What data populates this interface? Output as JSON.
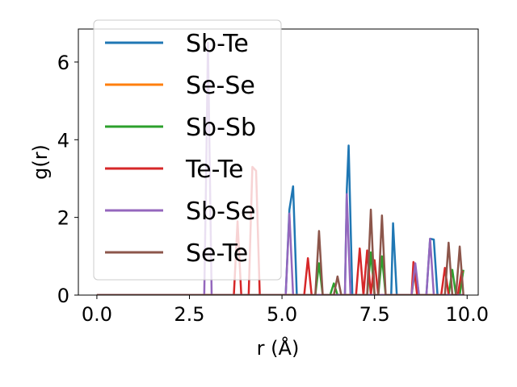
{
  "chart_data": {
    "type": "line",
    "xlabel": "r (Å)",
    "ylabel": "g(r)",
    "xlim": [
      -0.5,
      10.3
    ],
    "ylim": [
      0,
      6.85
    ],
    "xticks": [
      0.0,
      2.5,
      5.0,
      7.5,
      10.0
    ],
    "xtick_labels": [
      "0.0",
      "2.5",
      "5.0",
      "7.5",
      "10.0"
    ],
    "yticks": [
      0,
      2,
      4,
      6
    ],
    "ytick_labels": [
      "0",
      "2",
      "4",
      "6"
    ],
    "grid": false,
    "legend_position": "top-left",
    "series": [
      {
        "name": "Sb-Te",
        "color": "#1f77b4",
        "points": [
          [
            0,
            0
          ],
          [
            5.1,
            0
          ],
          [
            5.2,
            2.2
          ],
          [
            5.3,
            2.8
          ],
          [
            5.4,
            0
          ],
          [
            6.7,
            0
          ],
          [
            6.75,
            2.7
          ],
          [
            6.8,
            3.85
          ],
          [
            6.9,
            0
          ],
          [
            7.95,
            0
          ],
          [
            8.0,
            1.85
          ],
          [
            8.1,
            0
          ],
          [
            8.9,
            0
          ],
          [
            9.0,
            1.45
          ],
          [
            9.1,
            1.43
          ],
          [
            9.2,
            0
          ],
          [
            9.9,
            0
          ]
        ]
      },
      {
        "name": "Se-Se",
        "color": "#ff7f0e",
        "points": [
          [
            0,
            0
          ],
          [
            9.9,
            0
          ]
        ]
      },
      {
        "name": "Sb-Sb",
        "color": "#2ca02c",
        "points": [
          [
            0,
            0
          ],
          [
            5.9,
            0
          ],
          [
            6.0,
            0.82
          ],
          [
            6.1,
            0
          ],
          [
            6.3,
            0
          ],
          [
            6.4,
            0.3
          ],
          [
            6.5,
            0
          ],
          [
            7.3,
            0
          ],
          [
            7.4,
            1.1
          ],
          [
            7.5,
            0
          ],
          [
            7.6,
            0
          ],
          [
            7.7,
            1.0
          ],
          [
            7.8,
            0
          ],
          [
            8.5,
            0
          ],
          [
            8.6,
            0.7
          ],
          [
            8.7,
            0
          ],
          [
            9.5,
            0
          ],
          [
            9.6,
            0.65
          ],
          [
            9.7,
            0
          ],
          [
            9.8,
            0
          ],
          [
            9.9,
            0.65
          ]
        ]
      },
      {
        "name": "Te-Te",
        "color": "#d62728",
        "points": [
          [
            0,
            0
          ],
          [
            3.7,
            0
          ],
          [
            3.8,
            1.9
          ],
          [
            3.9,
            0
          ],
          [
            4.1,
            0
          ],
          [
            4.2,
            3.3
          ],
          [
            4.3,
            3.2
          ],
          [
            4.4,
            0
          ],
          [
            5.6,
            0
          ],
          [
            5.7,
            0.95
          ],
          [
            5.8,
            0
          ],
          [
            7.0,
            0
          ],
          [
            7.1,
            1.2
          ],
          [
            7.2,
            0
          ],
          [
            7.3,
            1.15
          ],
          [
            7.4,
            0
          ],
          [
            7.5,
            0.9
          ],
          [
            7.6,
            0
          ],
          [
            8.5,
            0
          ],
          [
            8.55,
            0.85
          ],
          [
            8.65,
            0
          ],
          [
            9.3,
            0
          ],
          [
            9.4,
            0.7
          ],
          [
            9.5,
            0
          ],
          [
            9.75,
            0
          ],
          [
            9.85,
            0.6
          ],
          [
            9.9,
            0.6
          ]
        ]
      },
      {
        "name": "Sb-Se",
        "color": "#9467bd",
        "points": [
          [
            0,
            0
          ],
          [
            2.9,
            0
          ],
          [
            2.95,
            3.0
          ],
          [
            3.0,
            6.5
          ],
          [
            3.1,
            0
          ],
          [
            5.1,
            0
          ],
          [
            5.2,
            2.1
          ],
          [
            5.3,
            0
          ],
          [
            6.7,
            0
          ],
          [
            6.75,
            2.6
          ],
          [
            6.85,
            0
          ],
          [
            8.5,
            0
          ],
          [
            8.6,
            0.82
          ],
          [
            8.7,
            0
          ],
          [
            8.9,
            0
          ],
          [
            9.0,
            1.45
          ],
          [
            9.1,
            0
          ],
          [
            9.9,
            0
          ]
        ]
      },
      {
        "name": "Se-Te",
        "color": "#8c564b",
        "points": [
          [
            0,
            0
          ],
          [
            5.9,
            0
          ],
          [
            6.0,
            1.65
          ],
          [
            6.1,
            0
          ],
          [
            6.4,
            0
          ],
          [
            6.5,
            0.48
          ],
          [
            6.6,
            0
          ],
          [
            7.3,
            0
          ],
          [
            7.4,
            2.2
          ],
          [
            7.5,
            0
          ],
          [
            7.6,
            0
          ],
          [
            7.7,
            2.05
          ],
          [
            7.8,
            0
          ],
          [
            9.4,
            0
          ],
          [
            9.5,
            1.35
          ],
          [
            9.6,
            0
          ],
          [
            9.7,
            0
          ],
          [
            9.8,
            1.25
          ],
          [
            9.9,
            0
          ]
        ]
      }
    ]
  }
}
